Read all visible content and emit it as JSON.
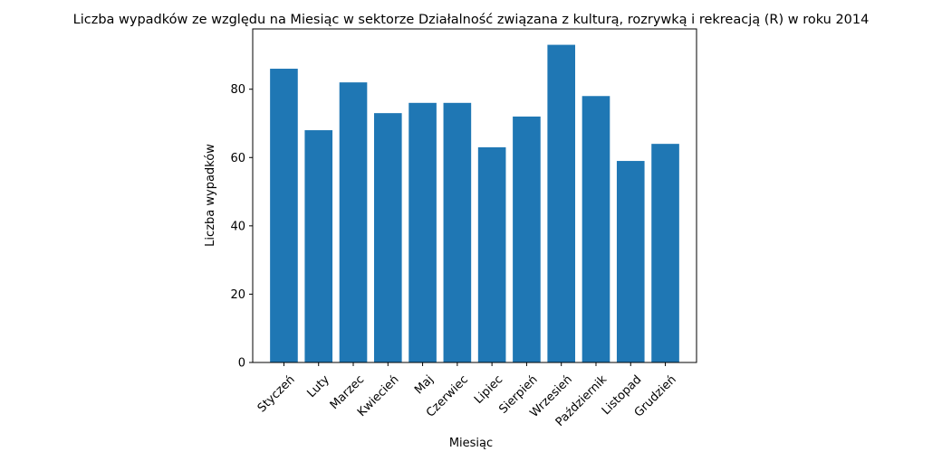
{
  "chart_data": {
    "type": "bar",
    "title": "Liczba wypadków ze względu na Miesiąc w sektorze Działalność związana z kulturą, rozrywką i rekreacją  (R) w roku 2014",
    "xlabel": "Miesiąc",
    "ylabel": "Liczba wypadków",
    "categories": [
      "Styczeń",
      "Luty",
      "Marzec",
      "Kwiecień",
      "Maj",
      "Czerwiec",
      "Lipiec",
      "Sierpień",
      "Wrzesień",
      "Październik",
      "Listopad",
      "Grudzień"
    ],
    "values": [
      86,
      68,
      82,
      73,
      76,
      76,
      63,
      72,
      93,
      78,
      59,
      64
    ],
    "ylim": [
      0,
      97.65
    ],
    "yticks": [
      0,
      20,
      40,
      60,
      80
    ],
    "bar_color": "#1f77b4",
    "grid": false,
    "legend": "none"
  }
}
